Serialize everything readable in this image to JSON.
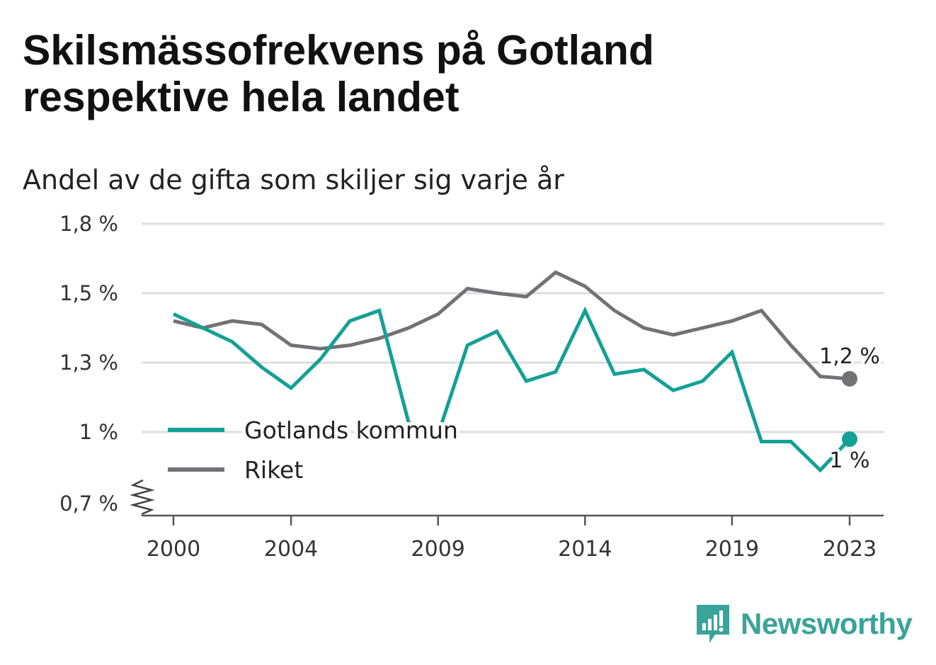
{
  "title": "Skilsmässofrekvens på Gotland respektive hela landet",
  "subtitle": "Andel av de gifta som skiljer sig varje år",
  "brand": "Newsworthy",
  "colors": {
    "gotland": "#13a195",
    "riket": "#727176",
    "grid": "#dddddd",
    "brand": "#3aa39a"
  },
  "chart_data": {
    "type": "line",
    "x": [
      2000,
      2001,
      2002,
      2003,
      2004,
      2005,
      2006,
      2007,
      2008,
      2009,
      2010,
      2011,
      2012,
      2013,
      2014,
      2015,
      2016,
      2017,
      2018,
      2019,
      2020,
      2021,
      2022,
      2023
    ],
    "series": [
      {
        "name": "Gotlands kommun",
        "color": "#13a195",
        "values": [
          1.44,
          1.4,
          1.36,
          1.28,
          1.19,
          1.31,
          1.42,
          1.45,
          1.04,
          0.99,
          1.35,
          1.39,
          1.22,
          1.26,
          1.45,
          1.25,
          1.27,
          1.18,
          1.22,
          1.33,
          0.96,
          0.96,
          0.84,
          0.97
        ]
      },
      {
        "name": "Riket",
        "color": "#727176",
        "values": [
          1.42,
          1.4,
          1.42,
          1.41,
          1.35,
          1.34,
          1.35,
          1.37,
          1.4,
          1.44,
          1.52,
          1.5,
          1.49,
          1.59,
          1.53,
          1.45,
          1.4,
          1.38,
          1.4,
          1.42,
          1.45,
          1.35,
          1.24,
          1.23
        ]
      }
    ],
    "yticks": [
      0.7,
      1.0,
      1.3,
      1.5,
      1.8
    ],
    "ytick_labels": [
      "0,7 %",
      "1 %",
      "1,3 %",
      "1,5 %",
      "1,8 %"
    ],
    "xticks": [
      2000,
      2004,
      2009,
      2014,
      2019,
      2023
    ],
    "xtick_labels": [
      "2000",
      "2004",
      "2009",
      "2014",
      "2019",
      "2023"
    ],
    "end_labels": {
      "gotland": "1 %",
      "riket": "1,2 %"
    },
    "legend": [
      "Gotlands kommun",
      "Riket"
    ],
    "legend_position": "bottom-left",
    "grid": true
  }
}
